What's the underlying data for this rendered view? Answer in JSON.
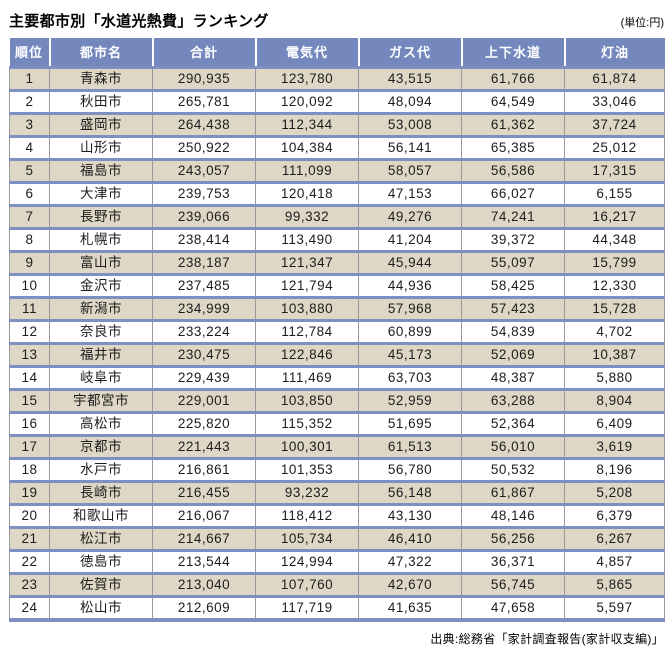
{
  "chart_data": {
    "type": "table",
    "title": "主要都市別「水道光熱費」ランキング",
    "unit": "(単位:円)",
    "source": "出典:総務省「家計調査報告(家計収支編)」",
    "columns": [
      "順位",
      "都市名",
      "合計",
      "電気代",
      "ガス代",
      "上下水道",
      "灯油"
    ],
    "column_keys": [
      "rank",
      "city",
      "total",
      "electricity",
      "gas",
      "water-sewage",
      "kerosene"
    ],
    "rows": [
      [
        "1",
        "青森市",
        "290,935",
        "123,780",
        "43,515",
        "61,766",
        "61,874"
      ],
      [
        "2",
        "秋田市",
        "265,781",
        "120,092",
        "48,094",
        "64,549",
        "33,046"
      ],
      [
        "3",
        "盛岡市",
        "264,438",
        "112,344",
        "53,008",
        "61,362",
        "37,724"
      ],
      [
        "4",
        "山形市",
        "250,922",
        "104,384",
        "56,141",
        "65,385",
        "25,012"
      ],
      [
        "5",
        "福島市",
        "243,057",
        "111,099",
        "58,057",
        "56,586",
        "17,315"
      ],
      [
        "6",
        "大津市",
        "239,753",
        "120,418",
        "47,153",
        "66,027",
        "6,155"
      ],
      [
        "7",
        "長野市",
        "239,066",
        "99,332",
        "49,276",
        "74,241",
        "16,217"
      ],
      [
        "8",
        "札幌市",
        "238,414",
        "113,490",
        "41,204",
        "39,372",
        "44,348"
      ],
      [
        "9",
        "富山市",
        "238,187",
        "121,347",
        "45,944",
        "55,097",
        "15,799"
      ],
      [
        "10",
        "金沢市",
        "237,485",
        "121,794",
        "44,936",
        "58,425",
        "12,330"
      ],
      [
        "11",
        "新潟市",
        "234,999",
        "103,880",
        "57,968",
        "57,423",
        "15,728"
      ],
      [
        "12",
        "奈良市",
        "233,224",
        "112,784",
        "60,899",
        "54,839",
        "4,702"
      ],
      [
        "13",
        "福井市",
        "230,475",
        "122,846",
        "45,173",
        "52,069",
        "10,387"
      ],
      [
        "14",
        "岐阜市",
        "229,439",
        "111,469",
        "63,703",
        "48,387",
        "5,880"
      ],
      [
        "15",
        "宇都宮市",
        "229,001",
        "103,850",
        "52,959",
        "63,288",
        "8,904"
      ],
      [
        "16",
        "高松市",
        "225,820",
        "115,352",
        "51,695",
        "52,364",
        "6,409"
      ],
      [
        "17",
        "京都市",
        "221,443",
        "100,301",
        "61,513",
        "56,010",
        "3,619"
      ],
      [
        "18",
        "水戸市",
        "216,861",
        "101,353",
        "56,780",
        "50,532",
        "8,196"
      ],
      [
        "19",
        "長崎市",
        "216,455",
        "93,232",
        "56,148",
        "61,867",
        "5,208"
      ],
      [
        "20",
        "和歌山市",
        "216,067",
        "118,412",
        "43,130",
        "48,146",
        "6,379"
      ],
      [
        "21",
        "松江市",
        "214,667",
        "105,734",
        "46,410",
        "56,256",
        "6,267"
      ],
      [
        "22",
        "徳島市",
        "213,544",
        "124,994",
        "47,322",
        "36,371",
        "4,857"
      ],
      [
        "23",
        "佐賀市",
        "213,040",
        "107,760",
        "42,670",
        "56,745",
        "5,865"
      ],
      [
        "24",
        "松山市",
        "212,609",
        "117,719",
        "41,635",
        "47,658",
        "5,597"
      ]
    ],
    "colors": {
      "header_bg": "#7488be",
      "header_text": "#ffffff",
      "row_alt_bg": "#ded7c5",
      "row_divider": "#7e90c2",
      "cell_divider": "#9a9a9a"
    }
  }
}
